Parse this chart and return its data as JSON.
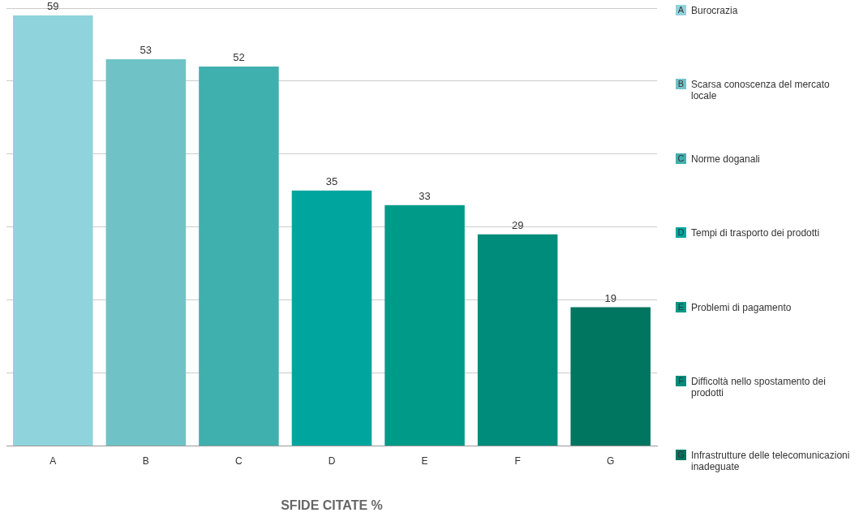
{
  "chart_data": {
    "type": "bar",
    "xlabel": "SFIDE CITATE %",
    "categories": [
      "A",
      "B",
      "C",
      "D",
      "E",
      "F",
      "G"
    ],
    "values": [
      59,
      53,
      52,
      35,
      33,
      29,
      19
    ],
    "colors": [
      "#8fd3dc",
      "#6fc3c6",
      "#40b0ae",
      "#00a69e",
      "#009a88",
      "#008c7a",
      "#007560"
    ],
    "ylim": [
      0,
      60
    ],
    "yticks": [
      {
        "value": 0,
        "label": null
      },
      {
        "value": 10,
        "label": null
      },
      {
        "value": 20,
        "label": null
      },
      {
        "value": 30,
        "label": null
      },
      {
        "value": 40,
        "label": null
      },
      {
        "value": 50,
        "label": null
      },
      {
        "value": 60,
        "label": null
      }
    ],
    "grid": "y",
    "data_labels": true,
    "annotations": [
      "Burocrazia",
      "Scarsa conoscenza del mercato locale",
      "Norme doganali",
      "Tempi di trasporto dei prodotti",
      "Problemi di pagamento",
      "Difficoltà nello spostamento dei prodotti",
      "Infrastrutture delle telecomunicazioni inadeguate"
    ]
  }
}
